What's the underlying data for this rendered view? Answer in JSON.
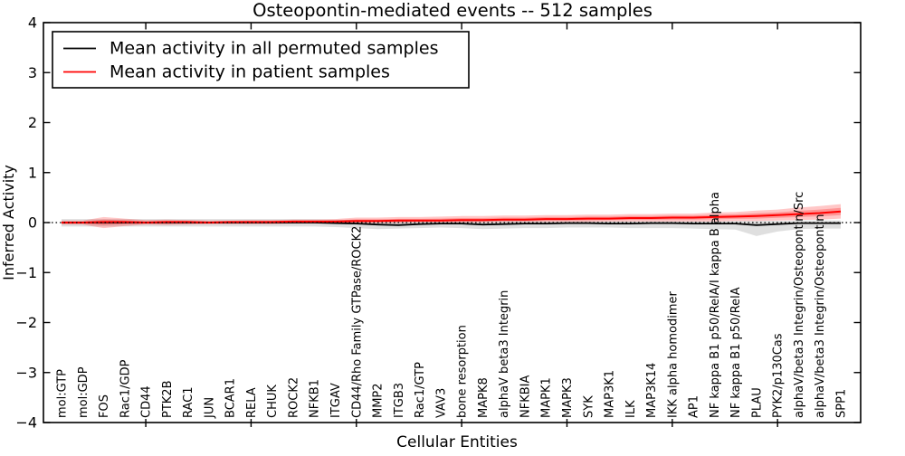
{
  "figure": {
    "title": "Osteopontin-mediated events -- 512 samples"
  },
  "legend": {
    "items": [
      {
        "label": "Mean activity in all permuted samples",
        "color": "#000000"
      },
      {
        "label": "Mean activity in patient samples",
        "color": "#ff0000"
      }
    ]
  },
  "chart_data": {
    "type": "line",
    "title": "Osteopontin-mediated events -- 512 samples",
    "xlabel": "Cellular Entities",
    "ylabel": "Inferred Activity",
    "ylim": [
      -4,
      4
    ],
    "yticks": [
      4,
      3,
      2,
      1,
      0,
      -1,
      -2,
      -3,
      -4
    ],
    "ytick_labels": [
      "4",
      "3",
      "2",
      "1",
      "0",
      "−1",
      "−2",
      "−3",
      "−4"
    ],
    "x_major_tick_indices": [
      4,
      9,
      14,
      19,
      24,
      29,
      34
    ],
    "grid": false,
    "legend_position": "upper left",
    "zero_line": {
      "y": 0,
      "style": "dotted",
      "color": "#000000"
    },
    "categories": [
      "mol:GTP",
      "mol:GDP",
      "FOS",
      "Rac1/GDP",
      "CD44",
      "PTK2B",
      "RAC1",
      "JUN",
      "BCAR1",
      "RELA",
      "CHUK",
      "ROCK2",
      "NFKB1",
      "ITGAV",
      "CD44/Rho Family GTPase/ROCK2",
      "MMP2",
      "ITGB3",
      "Rac1/GTP",
      "VAV3",
      "bone resorption",
      "MAPK8",
      "alphaV beta3 Integrin",
      "NFKBIA",
      "MAPK1",
      "MAPK3",
      "SYK",
      "MAP3K1",
      "ILK",
      "MAP3K14",
      "IKK alpha homodimer",
      "AP1",
      "NF kappa B1 p50/RelA/I kappa B alpha",
      "NF kappa B1 p50/RelA",
      "PLAU",
      "PYK2/p130Cas",
      "alphaV/beta3 Integrin/Osteopontin/Src",
      "alphaV/beta3 Integrin/Osteopontin",
      "SPP1"
    ],
    "series": [
      {
        "name": "Mean activity in all permuted samples",
        "color": "#000000",
        "values": [
          0,
          0,
          0,
          0,
          0,
          0,
          0,
          0,
          0,
          0,
          0,
          0,
          0,
          -0.01,
          -0.02,
          -0.04,
          -0.05,
          -0.03,
          -0.02,
          -0.02,
          -0.04,
          -0.03,
          -0.02,
          -0.02,
          -0.01,
          -0.01,
          -0.02,
          -0.02,
          -0.01,
          -0.01,
          -0.02,
          -0.02,
          -0.02,
          -0.05,
          -0.03,
          -0.01,
          -0.01,
          -0.01
        ]
      },
      {
        "name": "Mean activity in patient samples",
        "color": "#ff0000",
        "values": [
          0,
          0,
          0.01,
          0.01,
          0,
          0.01,
          0.01,
          0,
          0.01,
          0.01,
          0.01,
          0.02,
          0.02,
          0.02,
          0.03,
          0.03,
          0.04,
          0.04,
          0.04,
          0.05,
          0.05,
          0.06,
          0.06,
          0.07,
          0.07,
          0.08,
          0.08,
          0.09,
          0.09,
          0.1,
          0.1,
          0.11,
          0.12,
          0.13,
          0.15,
          0.17,
          0.19,
          0.22
        ]
      }
    ],
    "bands": [
      {
        "name": "permuted-samples-spread",
        "series_index": 0,
        "color": "#aaaaaa",
        "opacity": 0.38,
        "low": [
          -0.08,
          -0.08,
          -0.08,
          -0.08,
          -0.08,
          -0.08,
          -0.08,
          -0.08,
          -0.08,
          -0.08,
          -0.08,
          -0.08,
          -0.08,
          -0.09,
          -0.11,
          -0.13,
          -0.12,
          -0.11,
          -0.1,
          -0.11,
          -0.13,
          -0.12,
          -0.11,
          -0.11,
          -0.1,
          -0.1,
          -0.1,
          -0.11,
          -0.11,
          -0.11,
          -0.12,
          -0.13,
          -0.14,
          -0.27,
          -0.18,
          -0.13,
          -0.12,
          -0.12
        ],
        "high": [
          0.07,
          0.07,
          0.07,
          0.07,
          0.07,
          0.07,
          0.07,
          0.07,
          0.07,
          0.07,
          0.07,
          0.07,
          0.07,
          0.06,
          0.05,
          0.05,
          0.05,
          0.04,
          0.04,
          0.04,
          0.04,
          0.04,
          0.04,
          0.03,
          0.03,
          0.03,
          0.03,
          0.03,
          0.03,
          0.03,
          0.03,
          0.03,
          0.03,
          0.03,
          0.03,
          0.04,
          0.04,
          0.04
        ]
      },
      {
        "name": "patient-samples-spread",
        "series_index": 1,
        "color": "#ff0000",
        "opacity": 0.22,
        "inner_scale": 0.5,
        "inner_opacity": 0.25,
        "low": [
          -0.04,
          -0.04,
          -0.11,
          -0.07,
          -0.04,
          -0.05,
          -0.04,
          -0.03,
          -0.03,
          -0.03,
          -0.03,
          -0.02,
          -0.02,
          -0.02,
          -0.02,
          -0.01,
          -0.01,
          0,
          0,
          0,
          0,
          0.01,
          0.01,
          0.01,
          0.01,
          0.01,
          0.02,
          0.02,
          0.02,
          0.02,
          0.02,
          0.02,
          0.03,
          0.03,
          0.04,
          0.05,
          0.06,
          0.08
        ],
        "high": [
          0.04,
          0.04,
          0.11,
          0.08,
          0.05,
          0.06,
          0.05,
          0.04,
          0.04,
          0.05,
          0.05,
          0.06,
          0.06,
          0.07,
          0.1,
          0.1,
          0.11,
          0.11,
          0.12,
          0.13,
          0.13,
          0.14,
          0.14,
          0.15,
          0.15,
          0.16,
          0.16,
          0.17,
          0.17,
          0.18,
          0.18,
          0.2,
          0.21,
          0.24,
          0.26,
          0.3,
          0.33,
          0.37
        ]
      }
    ]
  }
}
